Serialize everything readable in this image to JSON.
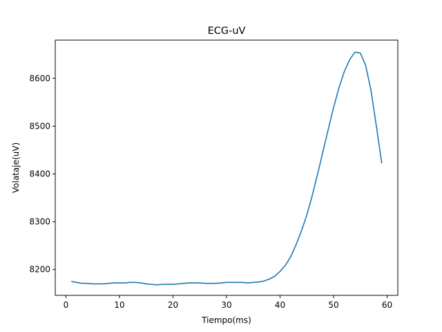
{
  "chart_data": {
    "type": "line",
    "title": "ECG-uV",
    "xlabel": "Tiempo(ms)",
    "ylabel": "Volataje(uV)",
    "xlim": [
      -2,
      62
    ],
    "ylim": [
      8146,
      8680
    ],
    "xticks": [
      0,
      10,
      20,
      30,
      40,
      50,
      60
    ],
    "yticks": [
      8200,
      8300,
      8400,
      8500,
      8600
    ],
    "grid": false,
    "line_color": "#1f77b4",
    "series": [
      {
        "x": [
          1,
          2,
          3,
          4,
          5,
          6,
          7,
          8,
          9,
          10,
          11,
          12,
          13,
          14,
          15,
          16,
          17,
          18,
          19,
          20,
          21,
          22,
          23,
          24,
          25,
          26,
          27,
          28,
          29,
          30,
          31,
          32,
          33,
          34,
          35,
          36,
          37,
          38,
          39,
          40,
          41,
          42,
          43,
          44,
          45,
          46,
          47,
          48,
          49,
          50,
          51,
          52,
          53,
          54,
          55,
          56,
          57,
          58,
          59
        ],
        "y": [
          8175,
          8173,
          8171,
          8171,
          8170,
          8170,
          8170,
          8171,
          8172,
          8172,
          8172,
          8173,
          8173,
          8172,
          8170,
          8169,
          8168,
          8169,
          8169,
          8169,
          8170,
          8171,
          8172,
          8172,
          8172,
          8171,
          8171,
          8171,
          8172,
          8173,
          8173,
          8173,
          8173,
          8172,
          8173,
          8174,
          8176,
          8180,
          8186,
          8196,
          8209,
          8227,
          8252,
          8281,
          8314,
          8354,
          8399,
          8446,
          8493,
          8539,
          8580,
          8614,
          8639,
          8655,
          8653,
          8627,
          8574,
          8500,
          8422
        ]
      }
    ]
  }
}
